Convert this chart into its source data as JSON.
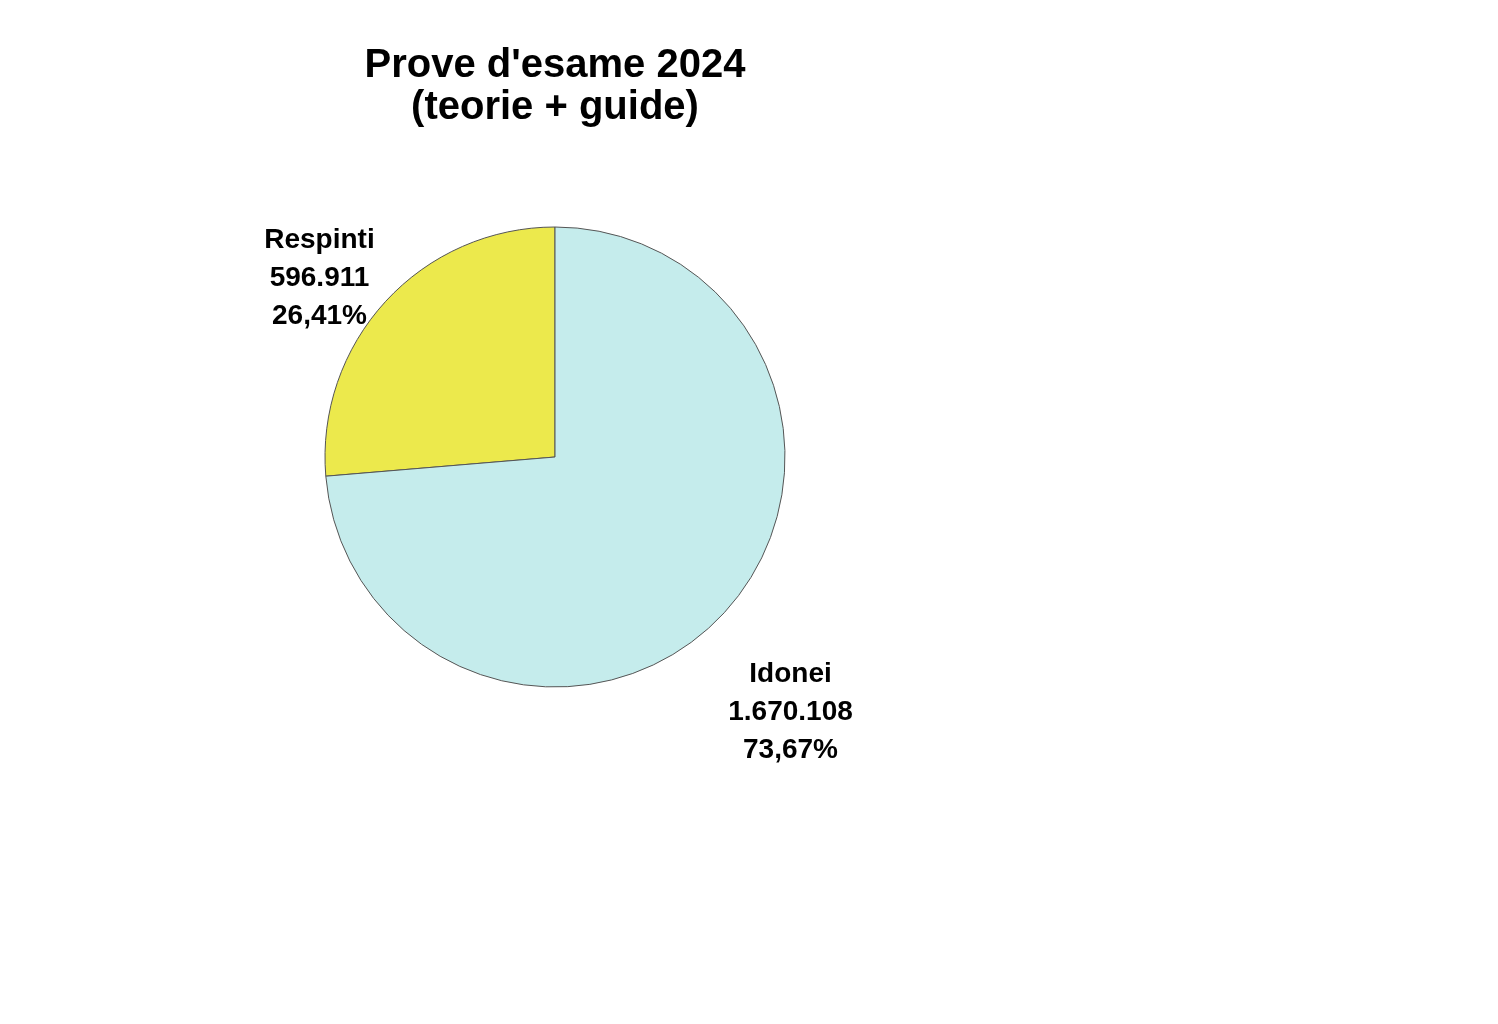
{
  "chart_data": {
    "type": "pie",
    "title": "Prove d'esame 2024\n(teorie + guide)",
    "categories": [
      "Respinti",
      "Idonei"
    ],
    "values": [
      596911,
      1670108
    ],
    "value_labels": [
      "596.911\n26,41%",
      "1.670.108\n73,67%"
    ],
    "colors": [
      "#ece94c",
      "#c5ecec"
    ],
    "legend": false
  }
}
